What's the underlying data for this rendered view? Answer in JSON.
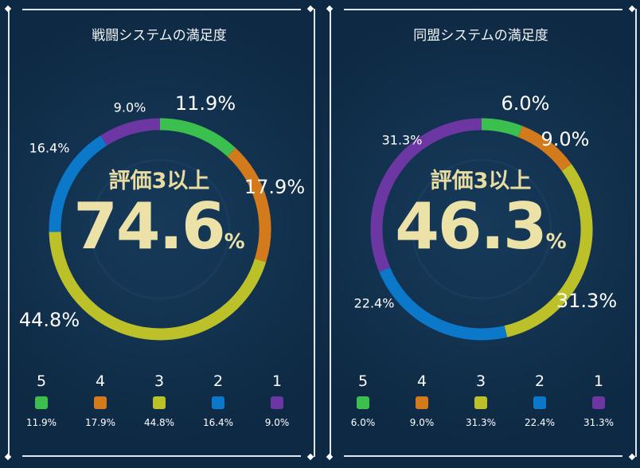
{
  "colors": {
    "5": "#3bbf4f",
    "4": "#d27a1c",
    "3": "#bcc12a",
    "2": "#0b78c9",
    "1": "#6c36a3",
    "background": "#0f2a45",
    "highlight": "#e8dca0"
  },
  "chart_data": [
    {
      "type": "pie",
      "title": "戦闘システムの満足度",
      "categories": [
        "5",
        "4",
        "3",
        "2",
        "1"
      ],
      "values": [
        11.9,
        17.9,
        44.8,
        16.4,
        9.0
      ],
      "value_labels": [
        "11.9%",
        "17.9%",
        "44.8%",
        "16.4%",
        "9.0%"
      ],
      "center_label": "評価3以上",
      "center_value": "74.6",
      "center_unit": "%",
      "legend": "bottom"
    },
    {
      "type": "pie",
      "title": "同盟システムの満足度",
      "categories": [
        "5",
        "4",
        "3",
        "2",
        "1"
      ],
      "values": [
        6.0,
        9.0,
        31.3,
        22.4,
        31.3
      ],
      "value_labels": [
        "6.0%",
        "9.0%",
        "31.3%",
        "22.4%",
        "31.3%"
      ],
      "center_label": "評価3以上",
      "center_value": "46.3",
      "center_unit": "%",
      "legend": "bottom"
    }
  ]
}
